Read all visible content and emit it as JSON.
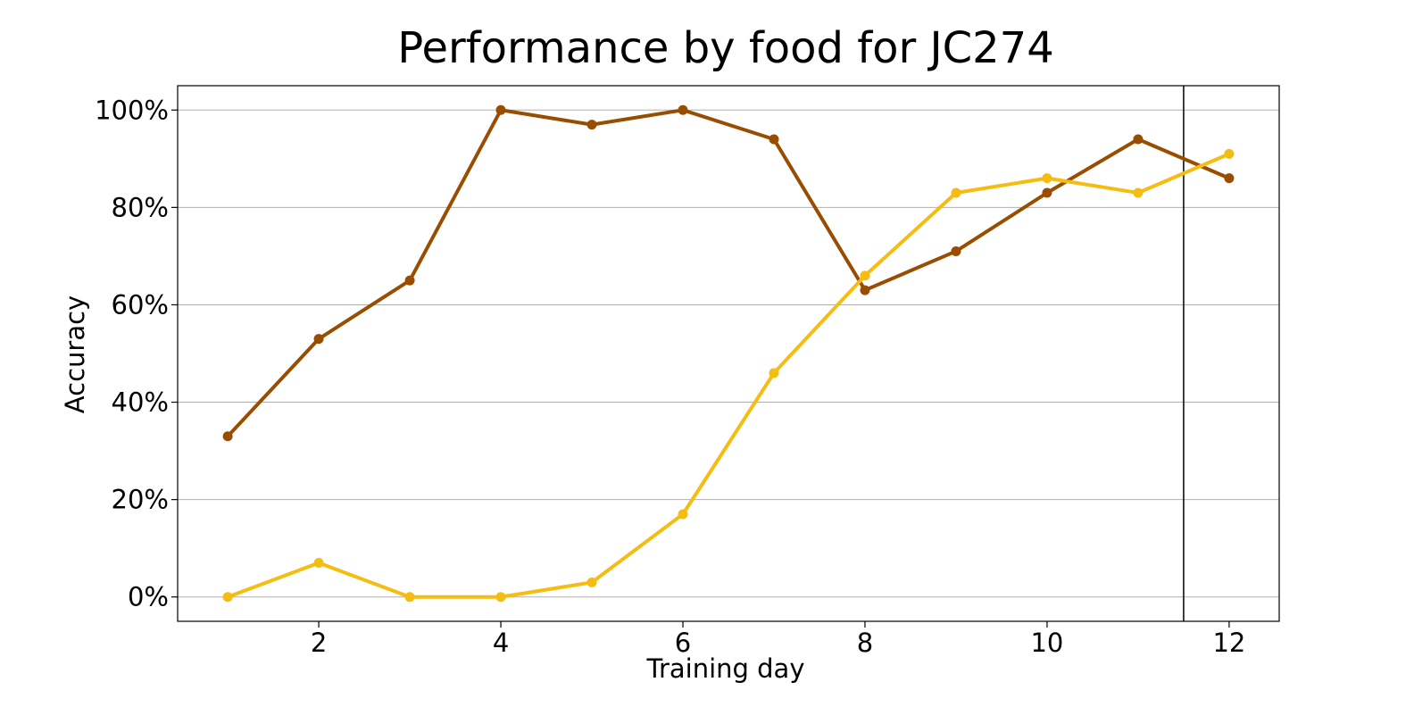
{
  "chart_data": {
    "type": "line",
    "title": "Performance by food for JC274",
    "xlabel": "Training day",
    "ylabel": "Accuracy",
    "x": [
      1,
      2,
      3,
      4,
      5,
      6,
      7,
      8,
      9,
      10,
      11,
      12
    ],
    "xlim": [
      0.45,
      12.55
    ],
    "ylim": [
      -5,
      105
    ],
    "xticks": [
      2,
      4,
      6,
      8,
      10,
      12
    ],
    "yticks": [
      0,
      20,
      40,
      60,
      80,
      100
    ],
    "ytick_suffix": "%",
    "grid": "horizontal",
    "legend": "none",
    "vertical_line_x": 11.5,
    "series": [
      {
        "color": "#994D00",
        "values": [
          33,
          53,
          65,
          100,
          97,
          100,
          94,
          63,
          71,
          83,
          94,
          86
        ]
      },
      {
        "color": "#F5BC12",
        "values": [
          0,
          7,
          0,
          0,
          3,
          17,
          46,
          66,
          83,
          86,
          83,
          91
        ]
      }
    ]
  }
}
